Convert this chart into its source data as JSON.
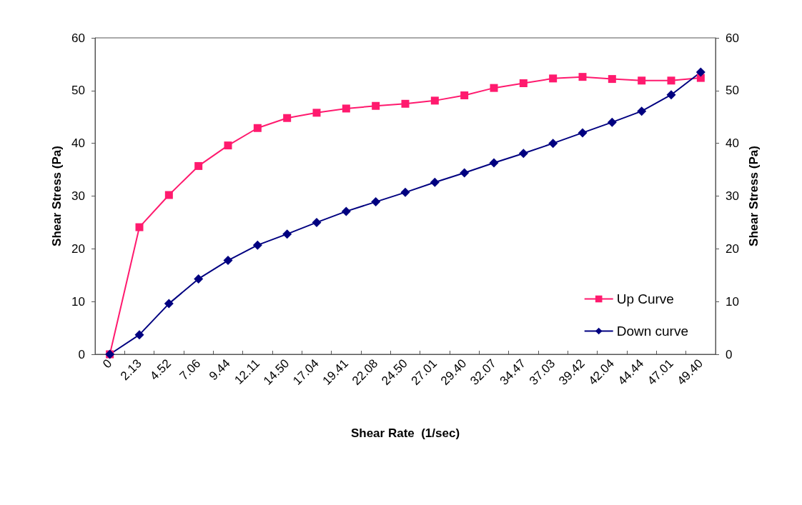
{
  "chart_data": {
    "type": "line",
    "xlabel": "Shear Rate  (1/sec)",
    "ylabel": "Shear Stress (Pa)",
    "y2label": "Shear Stress (Pa)",
    "categories": [
      "0",
      "2.13",
      "4.52",
      "7.06",
      "9.44",
      "12.11",
      "14.50",
      "17.04",
      "19.41",
      "22.08",
      "24.50",
      "27.01",
      "29.40",
      "32.07",
      "34.47",
      "37.03",
      "39.42",
      "42.04",
      "44.44",
      "47.01",
      "49.40"
    ],
    "series": [
      {
        "name": "Up Curve",
        "color": "#ff1a6e",
        "marker": "square",
        "values": [
          0,
          24.1,
          30.2,
          35.7,
          39.6,
          42.9,
          44.8,
          45.8,
          46.6,
          47.1,
          47.5,
          48.1,
          49.1,
          50.5,
          51.4,
          52.3,
          52.6,
          52.2,
          51.9,
          51.9,
          52.4
        ]
      },
      {
        "name": "Down curve",
        "color": "#000080",
        "marker": "diamond",
        "values": [
          0,
          3.7,
          9.6,
          14.3,
          17.8,
          20.7,
          22.8,
          25.0,
          27.1,
          28.9,
          30.7,
          32.6,
          34.4,
          36.3,
          38.1,
          40.0,
          42.0,
          44.0,
          46.1,
          49.2,
          53.5
        ]
      }
    ],
    "ylim": [
      0,
      60
    ],
    "yticks": [
      0,
      10,
      20,
      30,
      40,
      50,
      60
    ],
    "y2lim": [
      0,
      60
    ],
    "y2ticks": [
      0,
      10,
      20,
      30,
      40,
      50,
      60
    ],
    "grid": false,
    "legend": "bottom right",
    "line_style": "solid"
  }
}
